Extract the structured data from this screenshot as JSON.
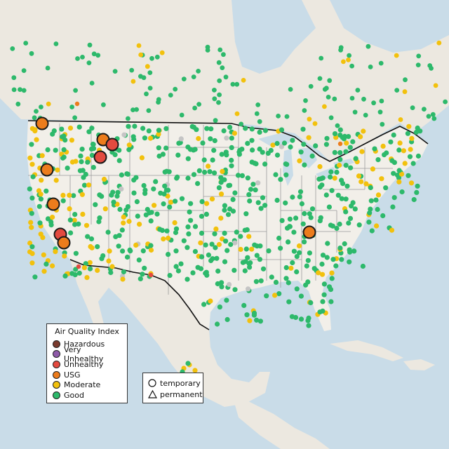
{
  "colors": {
    "ocean": "#c9dce8",
    "land_us": "#f2efe9",
    "land_other": "#ece8e0",
    "snow": "#f3e3e3",
    "border": "#111111",
    "state_line": "#9a9a9a",
    "water_lakes": "#c9dce8",
    "Hazardous": "#7a3b2e",
    "Very Unhealthy": "#8e5aa8",
    "Unhealthy": "#e34a3f",
    "USG": "#ec7c1c",
    "Moderate": "#f2c10d",
    "Good": "#2db96b",
    "unknown": "#c5c5c5"
  },
  "legend": {
    "title": "Air Quality Index",
    "items": [
      {
        "label": "Hazardous",
        "color": "#7a3b2e"
      },
      {
        "label": "Very Unhealthy",
        "color": "#8e5aa8"
      },
      {
        "label": "Unhealthy",
        "color": "#e34a3f"
      },
      {
        "label": "USG",
        "color": "#ec7c1c"
      },
      {
        "label": "Moderate",
        "color": "#f2c10d"
      },
      {
        "label": "Good",
        "color": "#2db96b"
      }
    ]
  },
  "monitor_types": {
    "temporary": "temporary",
    "permanent": "permanent"
  },
  "map": {
    "large_markers": [
      {
        "level": "USG"
      },
      {
        "level": "USG"
      },
      {
        "level": "Unhealthy"
      },
      {
        "level": "Unhealthy"
      },
      {
        "level": "USG"
      },
      {
        "level": "USG"
      },
      {
        "level": "Unhealthy"
      },
      {
        "level": "USG"
      },
      {
        "level": "USG"
      }
    ]
  }
}
